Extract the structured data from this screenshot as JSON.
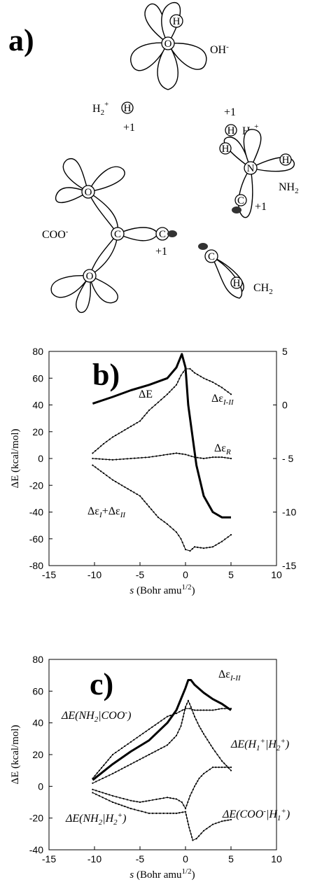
{
  "panel_a": {
    "letter": "a)",
    "atoms": [
      "H",
      "O",
      "H",
      "H",
      "N",
      "H",
      "C",
      "O",
      "C",
      "C",
      "O",
      "C",
      "H"
    ],
    "labels": {
      "oh": "OH",
      "oh_sup": "-",
      "h2": "H",
      "h2_sub": "2",
      "h2_sup": "+",
      "h2_charge": "+1",
      "h1": "H",
      "h1_sub": "1",
      "h1_sup": "+",
      "h1_charge": "+1",
      "nh2": "NH",
      "nh2_sub": "2",
      "coo": "COO",
      "coo_sup": "-",
      "c_charge_mid": "+1",
      "c_charge_right": "+1",
      "ch2": "CH",
      "ch2_sub": "2"
    }
  },
  "chart_data": [
    {
      "type": "line",
      "panel": "b)",
      "xlabel_main": "s",
      "xlabel_rest": "(Bohr amu",
      "xlabel_sup": "1/2",
      "xlabel_close": ")",
      "ylabel": "ΔE (kcal/mol)",
      "xlim": [
        -15,
        10
      ],
      "ylim": [
        -80,
        80
      ],
      "y2lim": [
        -15,
        5
      ],
      "xticks": [
        "-15",
        "-10",
        "-5",
        "0",
        "5",
        "10"
      ],
      "yticks": [
        "80",
        "60",
        "40",
        "20",
        "0",
        "-20",
        "-40",
        "-60",
        "-80"
      ],
      "y2ticks": [
        "5",
        "0",
        "- 5",
        "-10",
        "-15"
      ],
      "grid": false,
      "series": [
        {
          "name": "ΔE",
          "axis": "left",
          "style": "thick",
          "x": [
            -10.2,
            -8,
            -6,
            -4,
            -2,
            -1,
            -0.4,
            0,
            0.3,
            0.7,
            1.2,
            2,
            3,
            4,
            5
          ],
          "y": [
            41,
            46,
            51,
            55,
            60,
            68,
            78,
            68,
            40,
            20,
            -5,
            -28,
            -40,
            -44,
            -44
          ]
        },
        {
          "name": "Δε",
          "sub": "I-II",
          "axis": "left",
          "style": "dotted",
          "x": [
            -10.2,
            -9,
            -8,
            -7,
            -6,
            -5,
            -4,
            -3,
            -2,
            -1,
            -0.5,
            0,
            0.5,
            1,
            2,
            3,
            4,
            5
          ],
          "y": [
            4,
            11,
            16,
            20,
            24,
            28,
            36,
            42,
            48,
            55,
            62,
            67,
            67,
            64,
            60,
            57,
            53,
            48
          ]
        },
        {
          "name": "Δε",
          "sub": "R",
          "axis": "left",
          "style": "dotted",
          "x": [
            -10.2,
            -8,
            -6,
            -4,
            -2,
            -1,
            0,
            1,
            2,
            3,
            4,
            5
          ],
          "y": [
            0,
            -1,
            0,
            1,
            3,
            4,
            3,
            1,
            0,
            1,
            1,
            0
          ]
        },
        {
          "name": "Δε",
          "sub": "I",
          "name2": "+Δε",
          "sub2": "II",
          "axis": "left",
          "style": "dotted",
          "x": [
            -10.2,
            -9,
            -8,
            -7,
            -6,
            -5,
            -4,
            -3,
            -2,
            -1,
            -0.5,
            0,
            0.5,
            1,
            2,
            3,
            4,
            5
          ],
          "y": [
            -5,
            -11,
            -16,
            -20,
            -24,
            -28,
            -36,
            -44,
            -49,
            -55,
            -60,
            -68,
            -69,
            -66,
            -67,
            -66,
            -62,
            -57
          ]
        }
      ]
    },
    {
      "type": "line",
      "panel": "c)",
      "xlabel_main": "s",
      "xlabel_rest": "(Bohr amu",
      "xlabel_sup": "1/2",
      "xlabel_close": ")",
      "ylabel": "ΔE (kcal/mol)",
      "xlim": [
        -15,
        10
      ],
      "ylim": [
        -40,
        80
      ],
      "xticks": [
        "-15",
        "-10",
        "-5",
        "0",
        "5",
        "10"
      ],
      "yticks": [
        "80",
        "60",
        "40",
        "20",
        "0",
        "-20",
        "-40"
      ],
      "grid": false,
      "series": [
        {
          "name": "Δε",
          "sub": "I-II",
          "style": "thick",
          "x": [
            -10.2,
            -8,
            -6,
            -4,
            -2,
            -1,
            0,
            0.3,
            0.6,
            1,
            2,
            3,
            4,
            5
          ],
          "y": [
            4,
            14,
            22,
            29,
            40,
            48,
            62,
            67,
            67,
            64,
            59,
            55,
            52,
            48
          ]
        },
        {
          "name": "ΔE(NH",
          "sub": "2",
          "tail": "|COO",
          "tailsup": "-",
          "end": ")",
          "style": "dotted",
          "x": [
            -10.2,
            -8,
            -6,
            -4,
            -2,
            -1,
            0,
            0.5,
            1,
            2,
            3,
            4,
            5
          ],
          "y": [
            5,
            20,
            28,
            36,
            44,
            46,
            49,
            49,
            48,
            48,
            48,
            49,
            49
          ]
        },
        {
          "name": "ΔE(H",
          "sub": "1",
          "sup": "+",
          "tail": "|H",
          "tailsub": "2",
          "tailsup": "+",
          "end": ")",
          "style": "dotted",
          "x": [
            -10.2,
            -8,
            -6,
            -4,
            -2,
            -1,
            -0.5,
            0,
            0.3,
            0.6,
            1,
            1.5,
            2,
            3,
            4,
            5
          ],
          "y": [
            2,
            8,
            14,
            20,
            26,
            32,
            38,
            50,
            54,
            50,
            44,
            38,
            33,
            24,
            16,
            10
          ]
        },
        {
          "name": "ΔE(NH",
          "sub": "2",
          "tail": "|H",
          "tailsub": "2",
          "tailsup": "+",
          "end": ")",
          "style": "dotted",
          "x": [
            -10.2,
            -8,
            -6,
            -5,
            -4,
            -2,
            -1,
            -0.4,
            0,
            0.5,
            1,
            1.5,
            2,
            3,
            4,
            5
          ],
          "y": [
            -2,
            -6,
            -9,
            -10,
            -9,
            -7,
            -8,
            -10,
            -14,
            -6,
            0,
            5,
            8,
            12,
            12,
            12
          ]
        },
        {
          "name": "ΔE(COO",
          "sup": "-",
          "tail": "|H",
          "tailsub": "1",
          "tailsup": "+",
          "end": ")",
          "style": "dotted",
          "x": [
            -10.2,
            -8,
            -6,
            -4,
            -2,
            -1,
            0,
            0.4,
            0.8,
            1.2,
            2,
            3,
            4,
            5
          ],
          "y": [
            -4,
            -10,
            -14,
            -17,
            -17,
            -17,
            -16,
            -26,
            -34,
            -33,
            -28,
            -24,
            -22,
            -21
          ]
        }
      ]
    }
  ]
}
